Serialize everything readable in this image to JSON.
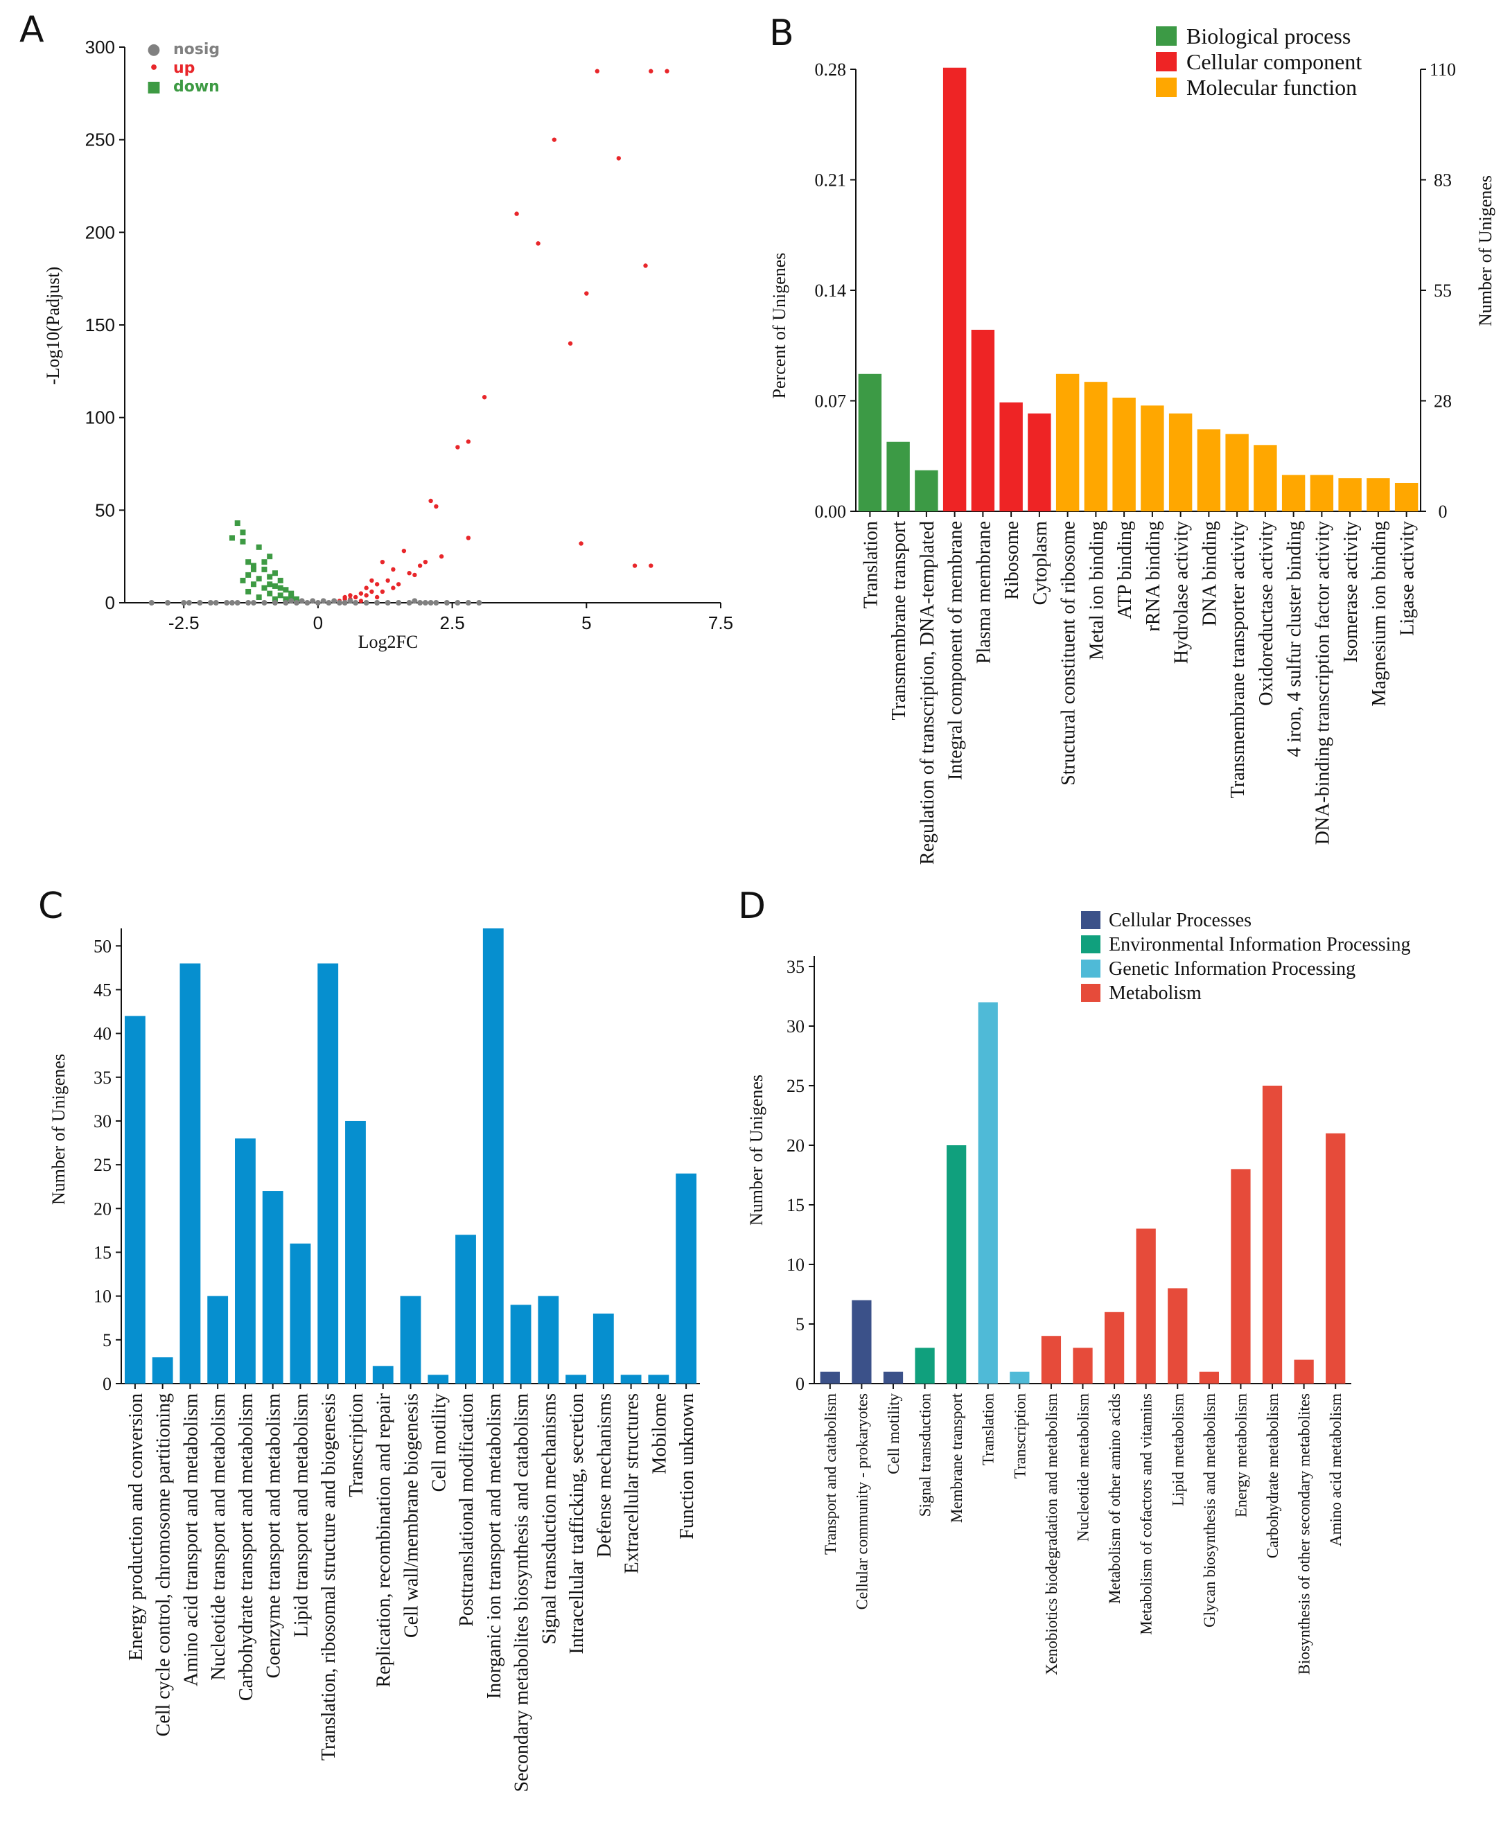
{
  "panels": {
    "a": "A",
    "b": "B",
    "c": "C",
    "d": "D"
  },
  "colors": {
    "nosig": "#808080",
    "up": "#e8262a",
    "down": "#3d9a43",
    "bp": "#3c9a45",
    "cc": "#ee2425",
    "mf": "#ffa700",
    "cog": "#068fcf",
    "kegg_cp": "#3b5189",
    "kegg_eip": "#10a07d",
    "kegg_gip": "#4fbad7",
    "kegg_met": "#e64b3a"
  },
  "chart_data": [
    {
      "id": "A",
      "type": "scatter",
      "title": "",
      "xlabel": "Log2FC",
      "ylabel": "-Log10(Padjust)",
      "xlim": [
        -3.6,
        7.5
      ],
      "ylim": [
        0,
        300
      ],
      "xticks": [
        -2.5,
        0,
        2.5,
        5,
        7.5
      ],
      "xtick_labels": [
        "-2.5",
        "0",
        "2.5",
        "5",
        "7.5"
      ],
      "yticks": [
        0,
        50,
        100,
        150,
        200,
        250,
        300
      ],
      "legend": [
        {
          "name": "nosig",
          "marker": "●"
        },
        {
          "name": "up",
          "marker": "•"
        },
        {
          "name": "down",
          "marker": "■"
        }
      ],
      "series": [
        {
          "name": "up",
          "points": [
            [
              5.2,
              287
            ],
            [
              6.2,
              287
            ],
            [
              6.5,
              287
            ],
            [
              4.4,
              250
            ],
            [
              5.6,
              240
            ],
            [
              3.7,
              210
            ],
            [
              4.1,
              194
            ],
            [
              6.1,
              182
            ],
            [
              5.0,
              167
            ],
            [
              4.7,
              140
            ],
            [
              3.1,
              111
            ],
            [
              2.6,
              84
            ],
            [
              2.8,
              87
            ],
            [
              2.1,
              55
            ],
            [
              2.2,
              52
            ],
            [
              2.8,
              35
            ],
            [
              4.9,
              32
            ],
            [
              5.9,
              20
            ],
            [
              6.2,
              20
            ],
            [
              1.6,
              28
            ],
            [
              1.9,
              20
            ],
            [
              2.0,
              22
            ],
            [
              1.2,
              22
            ],
            [
              1.4,
              18
            ],
            [
              1.7,
              16
            ],
            [
              1.3,
              12
            ],
            [
              1.1,
              10
            ],
            [
              0.9,
              8
            ],
            [
              1.0,
              6
            ],
            [
              0.8,
              5
            ],
            [
              0.6,
              4
            ],
            [
              0.7,
              3
            ],
            [
              0.5,
              2
            ],
            [
              0.9,
              4
            ],
            [
              1.5,
              10
            ],
            [
              1.8,
              15
            ],
            [
              0.4,
              1
            ],
            [
              0.6,
              2
            ],
            [
              1.2,
              6
            ],
            [
              0.5,
              3
            ],
            [
              1.1,
              3
            ],
            [
              0.8,
              1
            ],
            [
              1.4,
              8
            ],
            [
              2.3,
              25
            ],
            [
              1.0,
              12
            ]
          ]
        },
        {
          "name": "down",
          "points": [
            [
              -1.5,
              43
            ],
            [
              -1.4,
              38
            ],
            [
              -1.6,
              35
            ],
            [
              -1.4,
              33
            ],
            [
              -1.1,
              30
            ],
            [
              -0.9,
              25
            ],
            [
              -1.3,
              22
            ],
            [
              -1.2,
              20
            ],
            [
              -1.0,
              18
            ],
            [
              -0.8,
              16
            ],
            [
              -1.3,
              15
            ],
            [
              -0.9,
              14
            ],
            [
              -1.1,
              13
            ],
            [
              -0.7,
              12
            ],
            [
              -1.2,
              10
            ],
            [
              -0.8,
              9
            ],
            [
              -1.0,
              8
            ],
            [
              -0.6,
              7
            ],
            [
              -1.3,
              6
            ],
            [
              -0.9,
              5
            ],
            [
              -0.7,
              4
            ],
            [
              -0.5,
              3
            ],
            [
              -1.1,
              3
            ],
            [
              -0.8,
              2
            ],
            [
              -0.6,
              2
            ],
            [
              -1.2,
              18
            ],
            [
              -1.0,
              22
            ],
            [
              -0.7,
              8
            ],
            [
              -0.4,
              2
            ],
            [
              -0.9,
              10
            ],
            [
              -1.4,
              12
            ],
            [
              -0.5,
              5
            ]
          ]
        },
        {
          "name": "nosig",
          "points": [
            [
              -3.1,
              0
            ],
            [
              -2.8,
              0
            ],
            [
              -2.5,
              0
            ],
            [
              -2.4,
              0
            ],
            [
              -2.2,
              0
            ],
            [
              -1.9,
              0
            ],
            [
              -1.7,
              0
            ],
            [
              -1.6,
              0
            ],
            [
              -1.5,
              0
            ],
            [
              -1.3,
              0
            ],
            [
              -1.2,
              0
            ],
            [
              -1.0,
              0
            ],
            [
              -0.8,
              0
            ],
            [
              -0.6,
              0
            ],
            [
              -0.4,
              0
            ],
            [
              -0.3,
              1
            ],
            [
              -0.2,
              0
            ],
            [
              -0.1,
              1
            ],
            [
              0,
              0
            ],
            [
              0.1,
              1
            ],
            [
              0.2,
              0
            ],
            [
              0.3,
              1
            ],
            [
              0.4,
              0
            ],
            [
              0.5,
              0
            ],
            [
              0.7,
              0
            ],
            [
              0.9,
              0
            ],
            [
              1.1,
              0
            ],
            [
              1.3,
              0
            ],
            [
              1.5,
              0
            ],
            [
              1.7,
              0
            ],
            [
              1.9,
              0
            ],
            [
              2.0,
              0
            ],
            [
              2.2,
              0
            ],
            [
              2.4,
              0
            ],
            [
              2.6,
              0
            ],
            [
              2.8,
              0
            ],
            [
              3.0,
              0
            ],
            [
              -0.5,
              1
            ],
            [
              0.6,
              1
            ],
            [
              -2.0,
              0
            ],
            [
              1.8,
              1
            ],
            [
              2.1,
              0
            ]
          ]
        }
      ]
    },
    {
      "id": "B",
      "type": "bar",
      "title": "",
      "ylabel": "Percent of Unigenes",
      "y2label": "Number of Unigenes",
      "ylim": [
        0,
        0.28
      ],
      "yticks": [
        "0.00",
        "0.07",
        "0.14",
        "0.21",
        "0.28"
      ],
      "y2ticks": [
        "0",
        "28",
        "55",
        "83",
        "110"
      ],
      "legend": [
        {
          "name": "Biological process",
          "key": "bp"
        },
        {
          "name": "Cellular component",
          "key": "cc"
        },
        {
          "name": "Molecular function",
          "key": "mf"
        }
      ],
      "categories": [
        "Translation",
        "Transmembrane transport",
        "Regulation of transcription, DNA-templated",
        "Integral component of membrane",
        "Plasma membrane",
        "Ribosome",
        "Cytoplasm",
        "Structural constituent of ribosome",
        "Metal ion binding",
        "ATP binding",
        "rRNA binding",
        "Hydrolase activity",
        "DNA binding",
        "Transmembrane transporter activity",
        "Oxidoreductase activity",
        "4 iron, 4 sulfur cluster binding",
        "DNA-binding transcription factor activity",
        "Isomerase activity",
        "Magnesium ion binding",
        "Ligase activity"
      ],
      "values": [
        0.087,
        0.044,
        0.026,
        0.281,
        0.115,
        0.069,
        0.062,
        0.087,
        0.082,
        0.072,
        0.067,
        0.062,
        0.052,
        0.049,
        0.042,
        0.023,
        0.023,
        0.021,
        0.021,
        0.018
      ],
      "groups": [
        "bp",
        "bp",
        "bp",
        "cc",
        "cc",
        "cc",
        "cc",
        "mf",
        "mf",
        "mf",
        "mf",
        "mf",
        "mf",
        "mf",
        "mf",
        "mf",
        "mf",
        "mf",
        "mf",
        "mf"
      ]
    },
    {
      "id": "C",
      "type": "bar",
      "title": "",
      "ylabel": "Number of Unigenes",
      "ylim": [
        0,
        52
      ],
      "yticks": [
        0,
        5,
        10,
        15,
        20,
        25,
        30,
        35,
        40,
        45,
        50
      ],
      "categories": [
        "Energy production and conversion",
        "Cell cycle control, chromosome partitioning",
        "Amino acid transport and metabolism",
        "Nucleotide transport and metabolism",
        "Carbohydrate transport and metabolism",
        "Coenzyme transport and metabolism",
        "Lipid transport and metabolism",
        "Translation, ribosomal structure and biogenesis",
        "Transcription",
        "Replication, recombination and repair",
        "Cell wall/membrane biogenesis",
        "Cell motility",
        "Posttranslational modification",
        "Inorganic ion transport and metabolism",
        "Secondary metabolites biosynthesis and catabolism",
        "Signal transduction mechanisms",
        "Intracellular trafficking, secretion",
        "Defense mechanisms",
        "Extracellular structures",
        "Mobilome",
        "Function unknown"
      ],
      "values": [
        42,
        3,
        48,
        10,
        28,
        22,
        16,
        48,
        30,
        2,
        10,
        1,
        17,
        52,
        9,
        10,
        1,
        8,
        1,
        1,
        24
      ]
    },
    {
      "id": "D",
      "type": "bar",
      "title": "",
      "ylabel": "Number of Unigenes",
      "ylim": [
        0,
        35
      ],
      "yticks": [
        0,
        5,
        10,
        15,
        20,
        25,
        30,
        35
      ],
      "legend": [
        {
          "name": "Cellular Processes",
          "key": "kegg_cp"
        },
        {
          "name": "Environmental Information Processing",
          "key": "kegg_eip"
        },
        {
          "name": "Genetic Information Processing",
          "key": "kegg_gip"
        },
        {
          "name": "Metabolism",
          "key": "kegg_met"
        }
      ],
      "categories": [
        "Transport and catabolism",
        "Cellular community - prokaryotes",
        "Cell motility",
        "Signal transduction",
        "Membrane transport",
        "Translation",
        "Transcription",
        "Xenobiotics biodegradation and metabolism",
        "Nucleotide metabolism",
        "Metabolism of other amino acids",
        "Metabolism of cofactors and vitamins",
        "Lipid metabolism",
        "Glycan biosynthesis and metabolism",
        "Energy metabolism",
        "Carbohydrate metabolism",
        "Biosynthesis of other secondary metabolites",
        "Amino acid metabolism"
      ],
      "values": [
        1,
        7,
        1,
        3,
        20,
        32,
        1,
        4,
        3,
        6,
        13,
        8,
        1,
        18,
        25,
        2,
        21
      ],
      "groups": [
        "kegg_cp",
        "kegg_cp",
        "kegg_cp",
        "kegg_eip",
        "kegg_eip",
        "kegg_gip",
        "kegg_gip",
        "kegg_met",
        "kegg_met",
        "kegg_met",
        "kegg_met",
        "kegg_met",
        "kegg_met",
        "kegg_met",
        "kegg_met",
        "kegg_met",
        "kegg_met"
      ]
    }
  ]
}
